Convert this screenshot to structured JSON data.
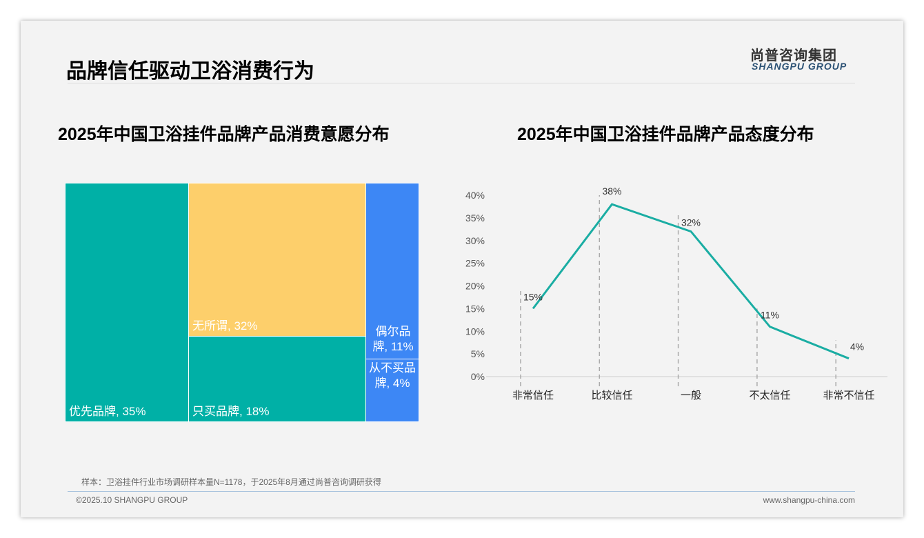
{
  "header": {
    "title": "品牌信任驱动卫浴消费行为",
    "logo_cn": "尚普咨询集团",
    "logo_en": "SHANGPU GROUP"
  },
  "chart_data": [
    {
      "type": "treemap",
      "title": "2025年中国卫浴挂件品牌产品消费意愿分布",
      "items": [
        {
          "label": "优先品牌, 35%",
          "name": "优先品牌",
          "value": 35,
          "color": "#00B0A6"
        },
        {
          "label": "无所谓, 32%",
          "name": "无所谓",
          "value": 32,
          "color": "#FDCF6B"
        },
        {
          "label": "只买品牌, 18%",
          "name": "只买品牌",
          "value": 18,
          "color": "#00B0A6"
        },
        {
          "label": "偶尔品牌, 11%",
          "name": "偶尔品牌",
          "value": 11,
          "color": "#3D87F5"
        },
        {
          "label": "从不买品牌, 4%",
          "name": "从不买品牌",
          "value": 4,
          "color": "#3D87F5"
        }
      ]
    },
    {
      "type": "line",
      "title": "2025年中国卫浴挂件品牌产品态度分布",
      "categories": [
        "非常信任",
        "比较信任",
        "一般",
        "不太信任",
        "非常不信任"
      ],
      "values": [
        15,
        38,
        32,
        11,
        4
      ],
      "data_labels": [
        "15%",
        "38%",
        "32%",
        "11%",
        "4%"
      ],
      "ylim": [
        0,
        40
      ],
      "yticks": [
        "0%",
        "5%",
        "10%",
        "15%",
        "20%",
        "25%",
        "30%",
        "35%",
        "40%"
      ],
      "color": "#1AADA3"
    }
  ],
  "footer": {
    "note": "样本：卫浴挂件行业市场调研样本量N=1178，于2025年8月通过尚普咨询调研获得",
    "copyright": "©2025.10 SHANGPU GROUP",
    "url": "www.shangpu-china.com"
  }
}
